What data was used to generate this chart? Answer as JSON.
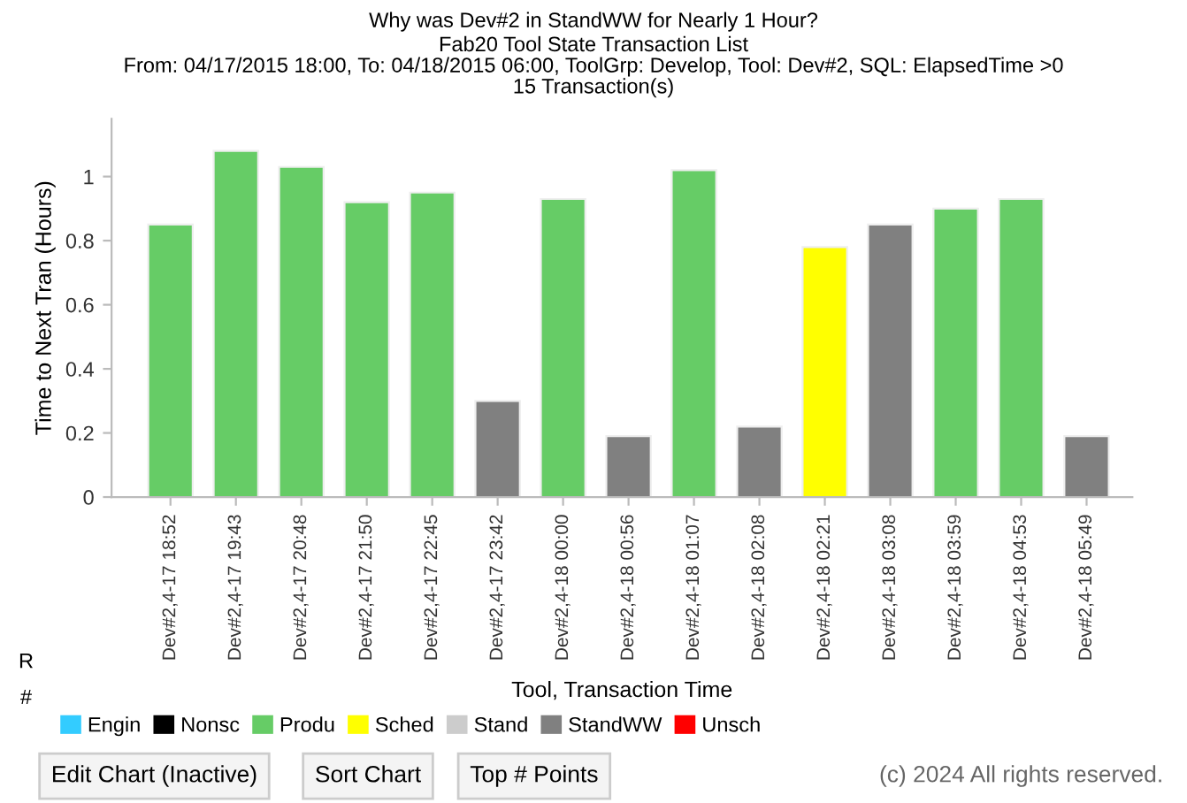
{
  "chart_data": {
    "type": "bar",
    "title": "Why was Dev#2 in StandWW for Nearly 1 Hour?",
    "subtitle": "Fab20 Tool State Transaction List\nFrom: 04/17/2015 18:00, To: 04/18/2015 06:00, ToolGrp: Develop, Tool: Dev#2, SQL: ElapsedTime >0\n15 Transaction(s)",
    "xlabel": "Tool, Transaction Time",
    "ylabel": "Time to Next Tran (Hours)",
    "categories": [
      "Dev#2,4-17 18:52",
      "Dev#2,4-17 19:43",
      "Dev#2,4-17 20:48",
      "Dev#2,4-17 21:50",
      "Dev#2,4-17 22:45",
      "Dev#2,4-17 23:42",
      "Dev#2,4-18 00:00",
      "Dev#2,4-18 00:56",
      "Dev#2,4-18 01:07",
      "Dev#2,4-18 02:08",
      "Dev#2,4-18 02:21",
      "Dev#2,4-18 03:08",
      "Dev#2,4-18 03:59",
      "Dev#2,4-18 04:53",
      "Dev#2,4-18 05:49"
    ],
    "series": [
      {
        "name": "Engin",
        "color": "#33ccff",
        "values": [
          null,
          null,
          null,
          null,
          null,
          null,
          null,
          null,
          null,
          null,
          null,
          null,
          null,
          null,
          null
        ]
      },
      {
        "name": "Nonsc",
        "color": "#000000",
        "values": [
          null,
          null,
          null,
          null,
          null,
          null,
          null,
          null,
          null,
          null,
          null,
          null,
          null,
          null,
          null
        ]
      },
      {
        "name": "Produ",
        "color": "#66cc66",
        "values": [
          0.85,
          1.08,
          1.03,
          0.92,
          0.95,
          null,
          0.93,
          null,
          1.02,
          null,
          null,
          null,
          0.9,
          0.93,
          null
        ]
      },
      {
        "name": "Sched",
        "color": "#ffff00",
        "values": [
          null,
          null,
          null,
          null,
          null,
          null,
          null,
          null,
          null,
          null,
          0.78,
          null,
          null,
          null,
          null
        ]
      },
      {
        "name": "Stand",
        "color": "#cccccc",
        "values": [
          null,
          null,
          null,
          null,
          null,
          null,
          null,
          null,
          null,
          null,
          null,
          null,
          null,
          null,
          null
        ]
      },
      {
        "name": "StandWW",
        "color": "#808080",
        "values": [
          null,
          null,
          null,
          null,
          null,
          0.3,
          null,
          0.19,
          null,
          0.22,
          null,
          0.85,
          null,
          null,
          0.19
        ]
      },
      {
        "name": "Unsch",
        "color": "#ff0000",
        "values": [
          null,
          null,
          null,
          null,
          null,
          null,
          null,
          null,
          null,
          null,
          null,
          null,
          null,
          null,
          null
        ]
      }
    ],
    "ylim": [
      0,
      1.18
    ],
    "yticks": [
      0,
      0.2,
      0.4,
      0.6,
      0.8,
      1
    ],
    "grid": false,
    "legend": "bottom",
    "annotations": [
      "R",
      "#",
      "Edit Chart (Inactive)",
      "Sort Chart",
      "Top # Points",
      "(c) 2024 All rights reserved."
    ]
  }
}
